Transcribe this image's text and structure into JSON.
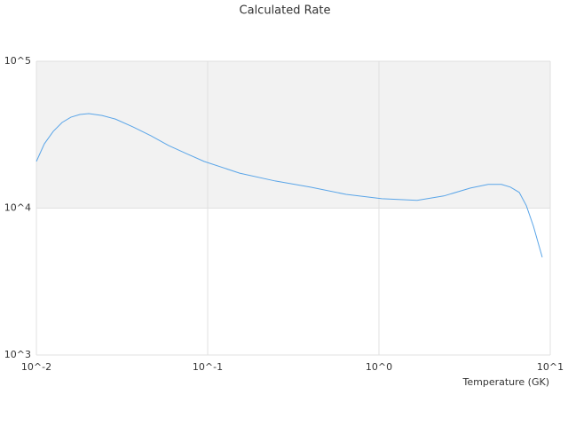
{
  "chart_data": {
    "type": "line",
    "title": "Calculated Rate",
    "x_label": "Temperature (GK)",
    "x_log": true,
    "y_log": true,
    "alternate_bands": true,
    "band_color": "#f2f2f2",
    "grid_color": "#e0e0e0",
    "x": [
      0.01,
      0.01113,
      0.01254,
      0.01413,
      0.0159,
      0.01794,
      0.02022,
      0.02417,
      0.0289,
      0.0367,
      0.0466,
      0.0591,
      0.0751,
      0.0953,
      0.1537,
      0.248,
      0.399,
      0.643,
      1.04,
      1.67,
      2.39,
      3.42,
      4.34,
      5.19,
      5.85,
      6.59,
      7.25,
      7.98,
      8.98
    ],
    "series": [
      {
        "color": "#5aa5e8",
        "values": [
          20800,
          27400,
          33300,
          38300,
          41600,
          43400,
          44000,
          42700,
          40400,
          35700,
          31100,
          26700,
          23500,
          20800,
          17300,
          15300,
          13900,
          12400,
          11600,
          11300,
          12100,
          13700,
          14500,
          14500,
          13900,
          12800,
          10400,
          7520,
          4630
        ]
      }
    ],
    "xlim": [
      0.01,
      10
    ],
    "xticks": [
      {
        "value": 0.01,
        "label": "10^-2"
      },
      {
        "value": 0.1,
        "label": "10^-1"
      },
      {
        "value": 1,
        "label": "10^0"
      },
      {
        "value": 10,
        "label": "10^1"
      }
    ],
    "ylim": [
      1000,
      100000
    ],
    "yticks": [
      {
        "value": 1000,
        "label": "10^3"
      },
      {
        "value": 10000,
        "label": "10^4"
      },
      {
        "value": 100000,
        "label": "10^5"
      }
    ]
  }
}
